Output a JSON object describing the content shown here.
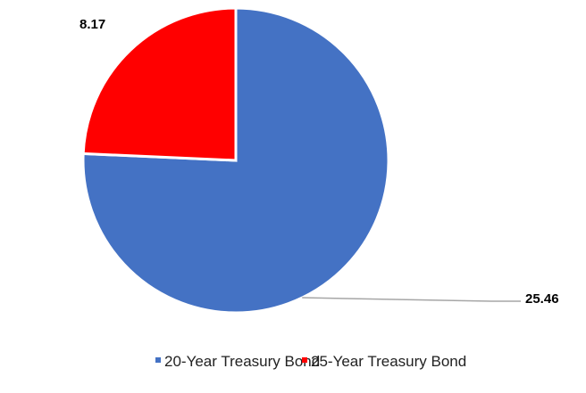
{
  "chart_data": {
    "type": "pie",
    "title": "",
    "series": [
      {
        "name": "20-Year Treasury Bond",
        "value": 25.46,
        "label": "25.46",
        "color": "#4472C4"
      },
      {
        "name": "25-Year Treasury Bond",
        "value": 8.17,
        "label": "8.17",
        "color": "#FF0000"
      }
    ],
    "legend_position": "bottom"
  }
}
